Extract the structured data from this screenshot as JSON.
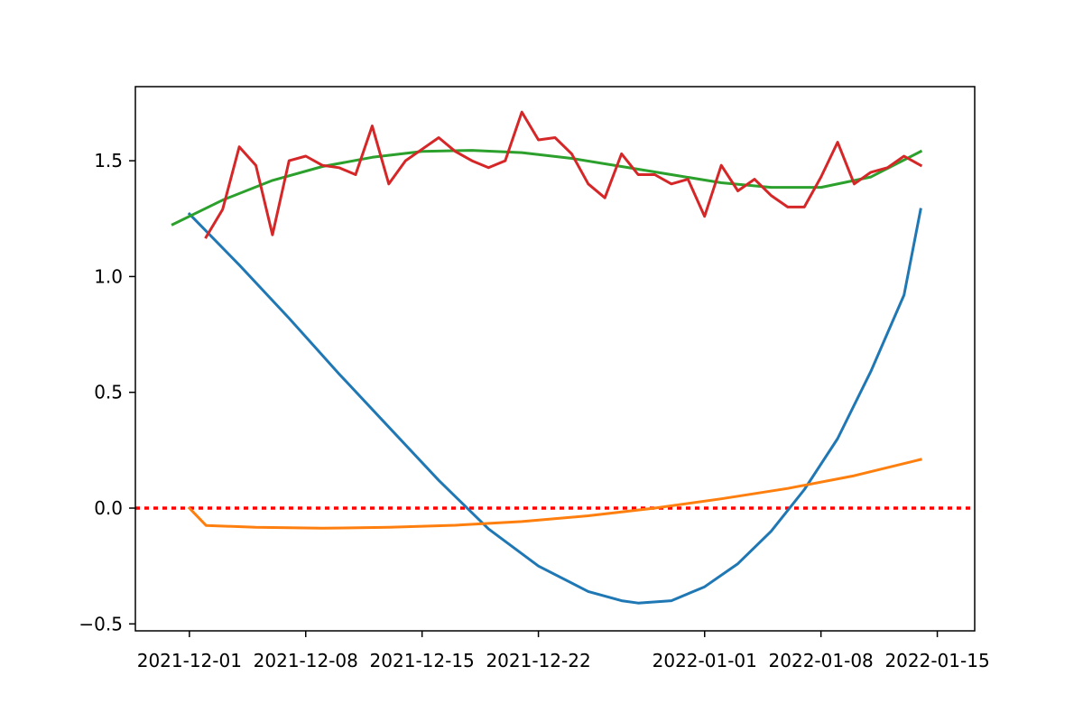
{
  "chart_data": {
    "type": "line",
    "title": "",
    "xlabel": "",
    "ylabel": "",
    "xlim": [
      "2021-11-27T18:00",
      "2022-01-17T06:00"
    ],
    "ylim": [
      -0.53,
      1.82
    ],
    "grid": false,
    "x_ticks": [
      "2021-12-01",
      "2021-12-08",
      "2021-12-15",
      "2021-12-22",
      "2022-01-01",
      "2022-01-08",
      "2022-01-15"
    ],
    "y_ticks": [
      -0.5,
      0.0,
      0.5,
      1.0,
      1.5
    ],
    "y_tick_labels": [
      "−0.5",
      "0.0",
      "0.5",
      "1.0",
      "1.5"
    ],
    "series": [
      {
        "color": "#1f77b4",
        "style": "solid",
        "points": [
          [
            "2021-12-01",
            1.27
          ],
          [
            "2021-12-04",
            1.05
          ],
          [
            "2021-12-07",
            0.82
          ],
          [
            "2021-12-10",
            0.58
          ],
          [
            "2021-12-13",
            0.35
          ],
          [
            "2021-12-16",
            0.12
          ],
          [
            "2021-12-19",
            -0.09
          ],
          [
            "2021-12-22",
            -0.25
          ],
          [
            "2021-12-25",
            -0.36
          ],
          [
            "2021-12-27",
            -0.4
          ],
          [
            "2021-12-28",
            -0.41
          ],
          [
            "2021-12-30",
            -0.4
          ],
          [
            "2022-01-01",
            -0.34
          ],
          [
            "2022-01-03",
            -0.24
          ],
          [
            "2022-01-05",
            -0.1
          ],
          [
            "2022-01-07",
            0.08
          ],
          [
            "2022-01-09",
            0.3
          ],
          [
            "2022-01-11",
            0.59
          ],
          [
            "2022-01-13",
            0.92
          ],
          [
            "2022-01-14",
            1.29
          ]
        ]
      },
      {
        "color": "#ff7f0e",
        "style": "solid",
        "points": [
          [
            "2021-12-01",
            0.0
          ],
          [
            "2021-12-02",
            -0.075
          ],
          [
            "2021-12-05",
            -0.083
          ],
          [
            "2021-12-09",
            -0.087
          ],
          [
            "2021-12-13",
            -0.083
          ],
          [
            "2021-12-17",
            -0.074
          ],
          [
            "2021-12-21",
            -0.058
          ],
          [
            "2021-12-25",
            -0.033
          ],
          [
            "2021-12-29",
            0.0
          ],
          [
            "2022-01-02",
            0.04
          ],
          [
            "2022-01-06",
            0.085
          ],
          [
            "2022-01-10",
            0.14
          ],
          [
            "2022-01-14",
            0.21
          ]
        ]
      },
      {
        "color": "#2ca02c",
        "style": "solid",
        "points": [
          [
            "2021-11-30",
            1.225
          ],
          [
            "2021-12-03",
            1.33
          ],
          [
            "2021-12-06",
            1.415
          ],
          [
            "2021-12-09",
            1.475
          ],
          [
            "2021-12-12",
            1.515
          ],
          [
            "2021-12-15",
            1.54
          ],
          [
            "2021-12-18",
            1.545
          ],
          [
            "2021-12-21",
            1.535
          ],
          [
            "2021-12-24",
            1.51
          ],
          [
            "2021-12-27",
            1.475
          ],
          [
            "2021-12-30",
            1.44
          ],
          [
            "2022-01-02",
            1.405
          ],
          [
            "2022-01-05",
            1.385
          ],
          [
            "2022-01-08",
            1.385
          ],
          [
            "2022-01-11",
            1.43
          ],
          [
            "2022-01-14",
            1.54
          ]
        ]
      },
      {
        "color": "#d62728",
        "style": "solid",
        "points": [
          [
            "2021-12-02",
            1.17
          ],
          [
            "2021-12-03",
            1.29
          ],
          [
            "2021-12-04",
            1.56
          ],
          [
            "2021-12-05",
            1.48
          ],
          [
            "2021-12-06",
            1.18
          ],
          [
            "2021-12-07",
            1.5
          ],
          [
            "2021-12-08",
            1.52
          ],
          [
            "2021-12-09",
            1.48
          ],
          [
            "2021-12-10",
            1.47
          ],
          [
            "2021-12-11",
            1.44
          ],
          [
            "2021-12-12",
            1.65
          ],
          [
            "2021-12-13",
            1.4
          ],
          [
            "2021-12-14",
            1.5
          ],
          [
            "2021-12-15",
            1.55
          ],
          [
            "2021-12-16",
            1.6
          ],
          [
            "2021-12-17",
            1.54
          ],
          [
            "2021-12-18",
            1.5
          ],
          [
            "2021-12-19",
            1.47
          ],
          [
            "2021-12-20",
            1.5
          ],
          [
            "2021-12-21",
            1.71
          ],
          [
            "2021-12-22",
            1.59
          ],
          [
            "2021-12-23",
            1.6
          ],
          [
            "2021-12-24",
            1.53
          ],
          [
            "2021-12-25",
            1.4
          ],
          [
            "2021-12-26",
            1.34
          ],
          [
            "2021-12-27",
            1.53
          ],
          [
            "2021-12-28",
            1.44
          ],
          [
            "2021-12-29",
            1.44
          ],
          [
            "2021-12-30",
            1.4
          ],
          [
            "2021-12-31",
            1.42
          ],
          [
            "2022-01-01",
            1.26
          ],
          [
            "2022-01-02",
            1.48
          ],
          [
            "2022-01-03",
            1.37
          ],
          [
            "2022-01-04",
            1.42
          ],
          [
            "2022-01-05",
            1.35
          ],
          [
            "2022-01-06",
            1.3
          ],
          [
            "2022-01-07",
            1.3
          ],
          [
            "2022-01-08",
            1.43
          ],
          [
            "2022-01-09",
            1.58
          ],
          [
            "2022-01-10",
            1.4
          ],
          [
            "2022-01-11",
            1.45
          ],
          [
            "2022-01-12",
            1.47
          ],
          [
            "2022-01-13",
            1.52
          ],
          [
            "2022-01-14",
            1.48
          ]
        ]
      }
    ],
    "reference_lines": [
      {
        "axis": "y",
        "value": 0,
        "color": "#ff0000",
        "style": "dotted"
      }
    ]
  }
}
